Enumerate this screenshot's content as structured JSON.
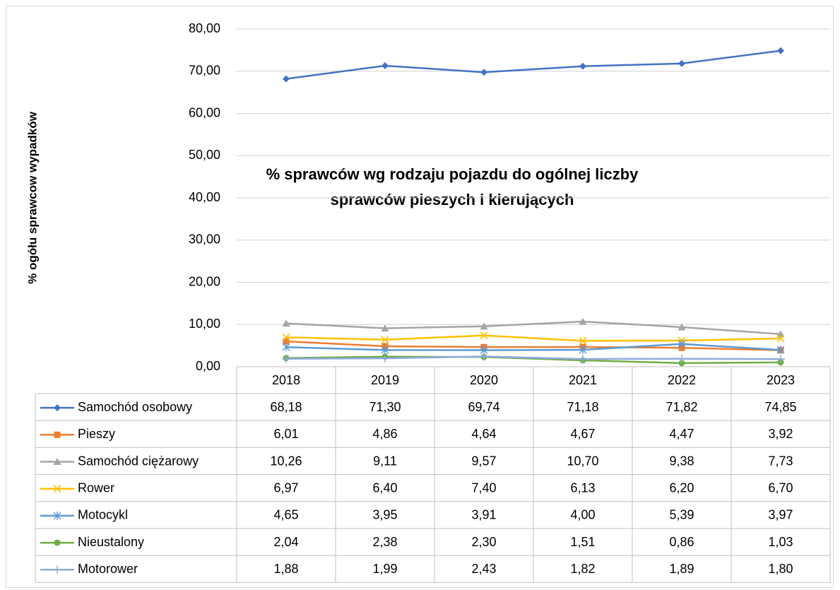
{
  "chart_data": {
    "type": "line",
    "title": [
      "% sprawców wg rodzaju pojazdu do ogólnej liczby",
      "sprawców pieszych i kierujących"
    ],
    "y_label": "% ogółu  sprawcow wypadków",
    "categories": [
      "2018",
      "2019",
      "2020",
      "2021",
      "2022",
      "2023"
    ],
    "ylim": [
      0,
      80
    ],
    "yticks": [
      {
        "value": 0,
        "label": "0,00"
      },
      {
        "value": 10,
        "label": "10,00"
      },
      {
        "value": 20,
        "label": "20,00"
      },
      {
        "value": 30,
        "label": "30,00"
      },
      {
        "value": 40,
        "label": "40,00"
      },
      {
        "value": 50,
        "label": "50,00"
      },
      {
        "value": 60,
        "label": "60,00"
      },
      {
        "value": 70,
        "label": "70,00"
      },
      {
        "value": 80,
        "label": "80,00"
      }
    ],
    "grid": true,
    "series": [
      {
        "name": "Samochód osobowy",
        "color": "#4472c4",
        "marker": "diamond",
        "values": [
          68.18,
          71.3,
          69.74,
          71.18,
          71.82,
          74.85
        ],
        "value_labels": [
          "68,18",
          "71,30",
          "69,74",
          "71,18",
          "71,82",
          "74,85"
        ]
      },
      {
        "name": "Pieszy",
        "color": "#ed7d31",
        "marker": "square",
        "values": [
          6.01,
          4.86,
          4.64,
          4.67,
          4.47,
          3.92
        ],
        "value_labels": [
          "6,01",
          "4,86",
          "4,64",
          "4,67",
          "4,47",
          "3,92"
        ]
      },
      {
        "name": "Samochód ciężarowy",
        "color": "#a5a5a5",
        "marker": "triangle",
        "values": [
          10.26,
          9.11,
          9.57,
          10.7,
          9.38,
          7.73
        ],
        "value_labels": [
          "10,26",
          "9,11",
          "9,57",
          "10,70",
          "9,38",
          "7,73"
        ]
      },
      {
        "name": "Rower",
        "color": "#ffc000",
        "marker": "x",
        "values": [
          6.97,
          6.4,
          7.4,
          6.13,
          6.2,
          6.7
        ],
        "value_labels": [
          "6,97",
          "6,40",
          "7,40",
          "6,13",
          "6,20",
          "6,70"
        ]
      },
      {
        "name": "Motocykl",
        "color": "#5b9bd5",
        "marker": "star",
        "values": [
          4.65,
          3.95,
          3.91,
          4.0,
          5.39,
          3.97
        ],
        "value_labels": [
          "4,65",
          "3,95",
          "3,91",
          "4,00",
          "5,39",
          "3,97"
        ]
      },
      {
        "name": "Nieustalony",
        "color": "#70ad47",
        "marker": "circle",
        "values": [
          2.04,
          2.38,
          2.3,
          1.51,
          0.86,
          1.03
        ],
        "value_labels": [
          "2,04",
          "2,38",
          "2,30",
          "1,51",
          "0,86",
          "1,03"
        ]
      },
      {
        "name": "Motorower",
        "color": "#8faadc",
        "marker": "plus",
        "values": [
          1.88,
          1.99,
          2.43,
          1.82,
          1.89,
          1.8
        ],
        "value_labels": [
          "1,88",
          "1,99",
          "2,43",
          "1,82",
          "1,89",
          "1,80"
        ]
      }
    ]
  }
}
